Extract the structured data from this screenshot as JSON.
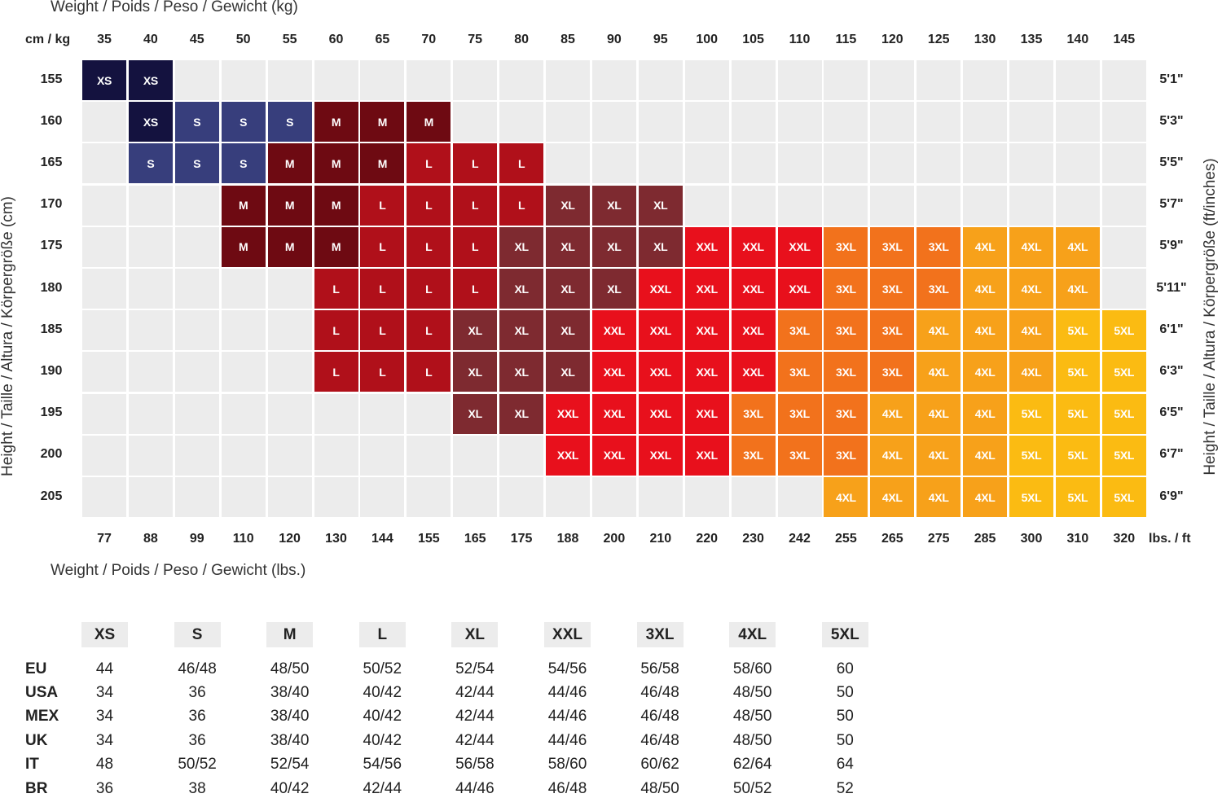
{
  "chart_data": {
    "type": "heatmap",
    "title": "",
    "top_axis_title": "Weight / Poids / Peso / Gewicht (kg)",
    "bottom_axis_title": "Weight / Poids / Peso / Gewicht (lbs.)",
    "left_axis_title": "Height / Taille / Altura / Körpergröße (cm)",
    "right_axis_title": "Height / Taille / Altura / Körpergröße (ft/inches)",
    "corner_top_label": "cm / kg",
    "corner_bottom_label": "lbs. / ft",
    "x_kg": [
      "35",
      "40",
      "45",
      "50",
      "55",
      "60",
      "65",
      "70",
      "75",
      "80",
      "85",
      "90",
      "95",
      "100",
      "105",
      "110",
      "115",
      "120",
      "125",
      "130",
      "135",
      "140",
      "145"
    ],
    "x_lbs": [
      "77",
      "88",
      "99",
      "110",
      "120",
      "130",
      "144",
      "155",
      "165",
      "175",
      "188",
      "200",
      "210",
      "220",
      "230",
      "242",
      "255",
      "265",
      "275",
      "285",
      "300",
      "310",
      "320"
    ],
    "y_cm": [
      "155",
      "160",
      "165",
      "170",
      "175",
      "180",
      "185",
      "190",
      "195",
      "200",
      "205"
    ],
    "y_ft": [
      "5'1\"",
      "5'3\"",
      "5'5\"",
      "5'7\"",
      "5'9\"",
      "5'11\"",
      "6'1\"",
      "6'3\"",
      "6'5\"",
      "6'7\"",
      "6'9\""
    ],
    "colors": {
      "XS": "#14123f",
      "S": "#373e7c",
      "M": "#6e0a12",
      "L": "#b0101a",
      "XL": "#7e2a30",
      "XXL": "#e8101c",
      "3XL": "#f2721c",
      "4XL": "#f7a11a",
      "5XL": "#fbbb12",
      "empty": "#ececec"
    },
    "rows": [
      {
        "cm": "155",
        "start_col": 0,
        "sizes": [
          "XS",
          "XS"
        ]
      },
      {
        "cm": "160",
        "start_col": 1,
        "sizes": [
          "XS",
          "S",
          "S",
          "S",
          "M",
          "M",
          "M"
        ]
      },
      {
        "cm": "165",
        "start_col": 1,
        "sizes": [
          "S",
          "S",
          "S",
          "M",
          "M",
          "M",
          "L",
          "L",
          "L"
        ]
      },
      {
        "cm": "170",
        "start_col": 3,
        "sizes": [
          "M",
          "M",
          "M",
          "L",
          "L",
          "L",
          "L",
          "XL",
          "XL",
          "XL"
        ]
      },
      {
        "cm": "175",
        "start_col": 3,
        "sizes": [
          "M",
          "M",
          "M",
          "L",
          "L",
          "L",
          "XL",
          "XL",
          "XL",
          "XL",
          "XXL",
          "XXL",
          "XXL",
          "3XL",
          "3XL",
          "3XL",
          "4XL",
          "4XL",
          "4XL"
        ]
      },
      {
        "cm": "180",
        "start_col": 5,
        "sizes": [
          "L",
          "L",
          "L",
          "L",
          "XL",
          "XL",
          "XL",
          "XXL",
          "XXL",
          "XXL",
          "XXL",
          "3XL",
          "3XL",
          "3XL",
          "4XL",
          "4XL",
          "4XL"
        ]
      },
      {
        "cm": "185",
        "start_col": 5,
        "sizes": [
          "L",
          "L",
          "L",
          "XL",
          "XL",
          "XL",
          "XXL",
          "XXL",
          "XXL",
          "XXL",
          "3XL",
          "3XL",
          "3XL",
          "4XL",
          "4XL",
          "4XL",
          "5XL",
          "5XL"
        ]
      },
      {
        "cm": "190",
        "start_col": 5,
        "sizes": [
          "L",
          "L",
          "L",
          "XL",
          "XL",
          "XL",
          "XXL",
          "XXL",
          "XXL",
          "XXL",
          "3XL",
          "3XL",
          "3XL",
          "4XL",
          "4XL",
          "4XL",
          "5XL",
          "5XL"
        ]
      },
      {
        "cm": "195",
        "start_col": 8,
        "sizes": [
          "XL",
          "XL",
          "XXL",
          "XXL",
          "XXL",
          "XXL",
          "3XL",
          "3XL",
          "3XL",
          "4XL",
          "4XL",
          "4XL",
          "5XL",
          "5XL",
          "5XL"
        ]
      },
      {
        "cm": "200",
        "start_col": 10,
        "sizes": [
          "XXL",
          "XXL",
          "XXL",
          "XXL",
          "3XL",
          "3XL",
          "3XL",
          "4XL",
          "4XL",
          "4XL",
          "5XL",
          "5XL",
          "5XL"
        ]
      },
      {
        "cm": "205",
        "start_col": 16,
        "sizes": [
          "4XL",
          "4XL",
          "4XL",
          "4XL",
          "5XL",
          "5XL",
          "5XL"
        ]
      }
    ]
  },
  "conversion_table": {
    "sizes": [
      "XS",
      "S",
      "M",
      "L",
      "XL",
      "XXL",
      "3XL",
      "4XL",
      "5XL"
    ],
    "rows": [
      {
        "country": "EU",
        "values": [
          "44",
          "46/48",
          "48/50",
          "50/52",
          "52/54",
          "54/56",
          "56/58",
          "58/60",
          "60"
        ]
      },
      {
        "country": "USA",
        "values": [
          "34",
          "36",
          "38/40",
          "40/42",
          "42/44",
          "44/46",
          "46/48",
          "48/50",
          "50"
        ]
      },
      {
        "country": "MEX",
        "values": [
          "34",
          "36",
          "38/40",
          "40/42",
          "42/44",
          "44/46",
          "46/48",
          "48/50",
          "50"
        ]
      },
      {
        "country": "UK",
        "values": [
          "34",
          "36",
          "38/40",
          "40/42",
          "42/44",
          "44/46",
          "46/48",
          "48/50",
          "50"
        ]
      },
      {
        "country": "IT",
        "values": [
          "48",
          "50/52",
          "52/54",
          "54/56",
          "56/58",
          "58/60",
          "60/62",
          "62/64",
          "64"
        ]
      },
      {
        "country": "BR",
        "values": [
          "36",
          "38",
          "40/42",
          "42/44",
          "44/46",
          "46/48",
          "48/50",
          "50/52",
          "52"
        ]
      }
    ]
  }
}
